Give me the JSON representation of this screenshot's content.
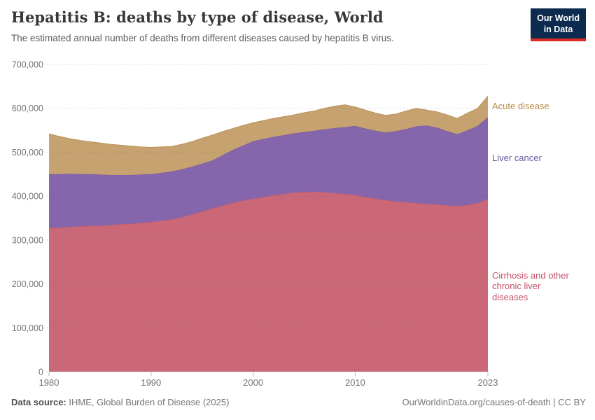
{
  "header": {
    "title": "Hepatitis B: deaths by type of disease, World",
    "subtitle": "The estimated annual number of deaths from different diseases caused by hepatitis B virus.",
    "logo": {
      "line1": "Our World",
      "line2": "in Data"
    }
  },
  "chart_data": {
    "type": "area",
    "stacked": true,
    "title": "Hepatitis B: deaths by type of disease, World",
    "xlabel": "",
    "ylabel": "",
    "x": [
      1980,
      1981,
      1982,
      1983,
      1984,
      1985,
      1986,
      1987,
      1988,
      1989,
      1990,
      1991,
      1992,
      1993,
      1994,
      1995,
      1996,
      1997,
      1998,
      1999,
      2000,
      2001,
      2002,
      2003,
      2004,
      2005,
      2006,
      2007,
      2008,
      2009,
      2010,
      2011,
      2012,
      2013,
      2014,
      2015,
      2016,
      2017,
      2018,
      2019,
      2020,
      2021,
      2022,
      2023
    ],
    "series": [
      {
        "name": "Cirrhosis and other chronic liver diseases",
        "label_lines": [
          "Cirrhosis and other",
          "chronic liver",
          "diseases"
        ],
        "color": "#ca6878",
        "edge_color": "#c05a6c",
        "label_color": "#c4506a",
        "values": [
          327000,
          328000,
          330000,
          331000,
          332000,
          333000,
          334000,
          336000,
          337000,
          339000,
          341000,
          344000,
          347000,
          352000,
          358000,
          365000,
          372000,
          378000,
          385000,
          390000,
          394000,
          398000,
          402000,
          405000,
          408000,
          409000,
          410000,
          409000,
          407000,
          405000,
          403000,
          398000,
          394000,
          391000,
          388000,
          386000,
          384000,
          382000,
          381000,
          379000,
          377000,
          380000,
          384000,
          394000
        ]
      },
      {
        "name": "Liver cancer",
        "color": "#8566ac",
        "edge_color": "#7a58a3",
        "label_color": "#6e5ca6",
        "values": [
          123000,
          122000,
          121000,
          119000,
          118000,
          116000,
          114000,
          112000,
          111000,
          110000,
          109000,
          109000,
          109000,
          109000,
          109000,
          109000,
          109000,
          115000,
          120000,
          125000,
          131000,
          132000,
          133000,
          134000,
          135000,
          137000,
          139000,
          143000,
          148000,
          152000,
          157000,
          156000,
          155000,
          154000,
          160000,
          167000,
          175000,
          179000,
          175000,
          169000,
          164000,
          170000,
          176000,
          186000
        ]
      },
      {
        "name": "Acute disease",
        "color": "#c5a26f",
        "edge_color": "#ba9258",
        "label_color": "#b68a48",
        "values": [
          92000,
          86000,
          80000,
          77000,
          74000,
          72000,
          70000,
          68000,
          66000,
          63000,
          61000,
          59000,
          57000,
          57000,
          57000,
          58000,
          58000,
          54000,
          49000,
          46000,
          42000,
          42000,
          42000,
          42000,
          42000,
          44000,
          45000,
          48000,
          50000,
          51000,
          43000,
          42000,
          40000,
          39000,
          39000,
          41000,
          41000,
          35000,
          36000,
          37000,
          36000,
          39000,
          40000,
          48000
        ]
      }
    ],
    "ylim": [
      0,
      700000
    ],
    "y_ticks": [
      0,
      100000,
      200000,
      300000,
      400000,
      500000,
      600000,
      700000
    ],
    "y_tick_labels": [
      "0",
      "100,000",
      "200,000",
      "300,000",
      "400,000",
      "500,000",
      "600,000",
      "700,000"
    ],
    "x_ticks": [
      1980,
      1990,
      2000,
      2010,
      2023
    ],
    "grid": "dashed",
    "legend_position": "right"
  },
  "colors": {
    "background": "#ffffff",
    "grid": "rgba(85,85,85,0.20)",
    "tick_text": "#737373",
    "logo_bg": "#0c2b4e",
    "logo_accent": "#dc2c27"
  },
  "footer": {
    "source_label": "Data source:",
    "source_value": " IHME, Global Burden of Disease (2025)",
    "citation": "OurWorldinData.org/causes-of-death | CC BY"
  }
}
